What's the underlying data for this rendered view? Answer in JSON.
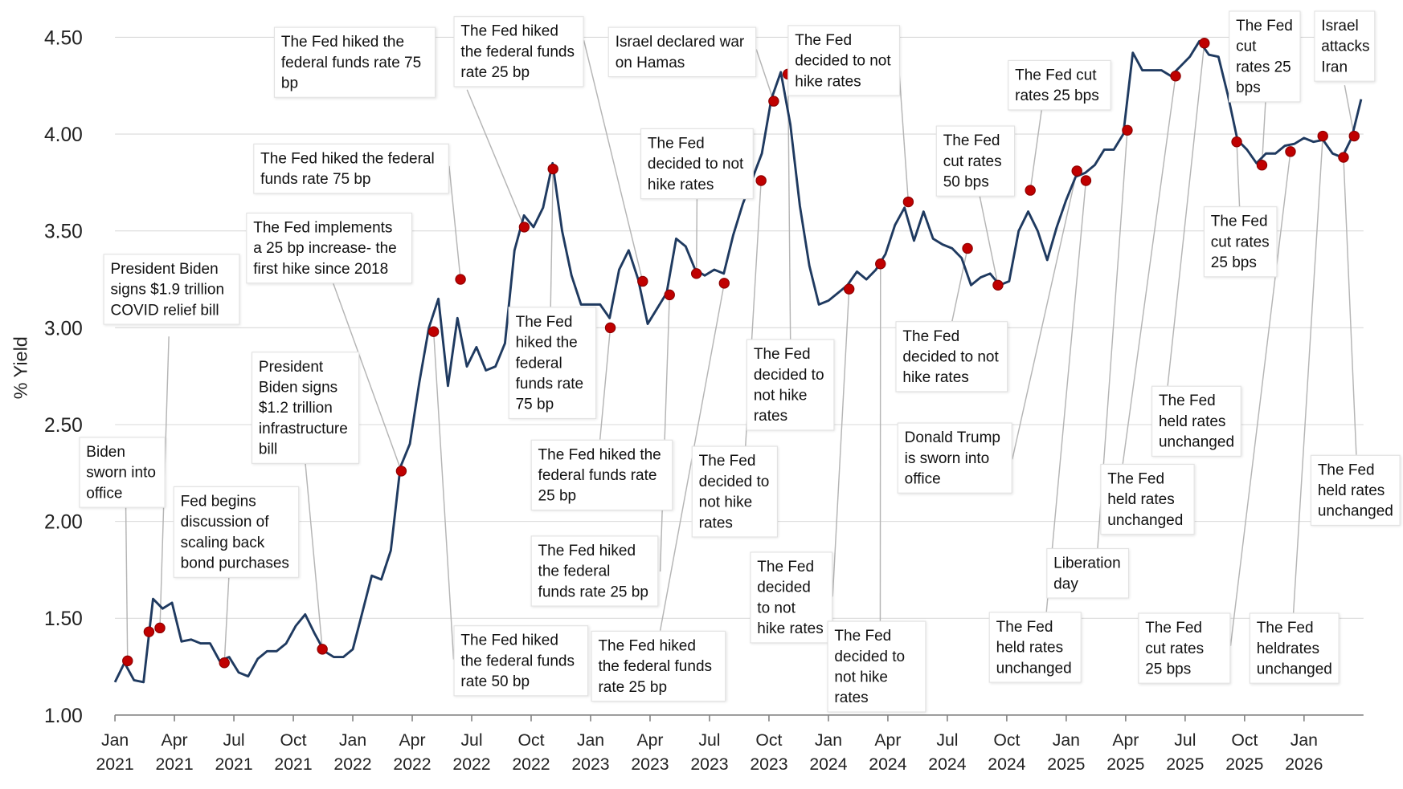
{
  "chart_data": {
    "type": "line",
    "y_label": "% Yield",
    "color": "#1f3a60",
    "marker_color": "#c00000",
    "grid": true,
    "ylim": [
      1,
      4.6
    ],
    "yticks": [
      {
        "value": 1,
        "label": "1.00"
      },
      {
        "value": 1.5,
        "label": "1.50"
      },
      {
        "value": 2,
        "label": "2.00"
      },
      {
        "value": 2.5,
        "label": "2.50"
      },
      {
        "value": 3,
        "label": "3.00"
      },
      {
        "value": 3.5,
        "label": "3.50"
      },
      {
        "value": 4,
        "label": "4.00"
      },
      {
        "value": 4.5,
        "label": "4.50"
      }
    ],
    "xlim": [
      2021,
      2026.25
    ],
    "xticks": [
      {
        "value": 2021,
        "label": "Jan 2021"
      },
      {
        "value": 2021.25,
        "label": "Apr 2021"
      },
      {
        "value": 2021.5,
        "label": "Jul 2021"
      },
      {
        "value": 2021.75,
        "label": "Oct 2021"
      },
      {
        "value": 2022,
        "label": "Jan 2022"
      },
      {
        "value": 2022.25,
        "label": "Apr 2022"
      },
      {
        "value": 2022.5,
        "label": "Jul 2022"
      },
      {
        "value": 2022.75,
        "label": "Oct 2022"
      },
      {
        "value": 2023,
        "label": "Jan 2023"
      },
      {
        "value": 2023.25,
        "label": "Apr 2023"
      },
      {
        "value": 2023.5,
        "label": "Jul 2023"
      },
      {
        "value": 2023.75,
        "label": "Oct 2023"
      },
      {
        "value": 2024,
        "label": "Jan 2024"
      },
      {
        "value": 2024.25,
        "label": "Apr 2024"
      },
      {
        "value": 2024.5,
        "label": "Jul 2024"
      },
      {
        "value": 2024.75,
        "label": "Oct 2024"
      },
      {
        "value": 2025,
        "label": "Jan 2025"
      },
      {
        "value": 2025.25,
        "label": "Apr 2025"
      },
      {
        "value": 2025.5,
        "label": "Jul 2025"
      },
      {
        "value": 2025.75,
        "label": "Oct 2025"
      },
      {
        "value": 2026,
        "label": "Jan 2026"
      }
    ],
    "x": [
      2021.0,
      2021.04,
      2021.08,
      2021.12,
      2021.16,
      2021.2,
      2021.24,
      2021.28,
      2021.32,
      2021.36,
      2021.4,
      2021.44,
      2021.48,
      2021.52,
      2021.56,
      2021.6,
      2021.64,
      2021.68,
      2021.72,
      2021.76,
      2021.8,
      2021.84,
      2021.88,
      2021.92,
      2021.96,
      2022.0,
      2022.04,
      2022.08,
      2022.12,
      2022.16,
      2022.2,
      2022.24,
      2022.28,
      2022.32,
      2022.36,
      2022.4,
      2022.44,
      2022.48,
      2022.52,
      2022.56,
      2022.6,
      2022.64,
      2022.68,
      2022.72,
      2022.76,
      2022.8,
      2022.84,
      2022.88,
      2022.92,
      2022.96,
      2023.0,
      2023.04,
      2023.08,
      2023.12,
      2023.16,
      2023.2,
      2023.24,
      2023.28,
      2023.32,
      2023.36,
      2023.4,
      2023.44,
      2023.48,
      2023.52,
      2023.56,
      2023.6,
      2023.64,
      2023.68,
      2023.72,
      2023.76,
      2023.8,
      2023.84,
      2023.88,
      2023.92,
      2023.96,
      2024.0,
      2024.04,
      2024.08,
      2024.12,
      2024.16,
      2024.2,
      2024.24,
      2024.28,
      2024.32,
      2024.36,
      2024.4,
      2024.44,
      2024.48,
      2024.52,
      2024.56,
      2024.6,
      2024.64,
      2024.68,
      2024.72,
      2024.76,
      2024.8,
      2024.84,
      2024.88,
      2024.92,
      2024.96,
      2025.0,
      2025.04,
      2025.08,
      2025.12,
      2025.16,
      2025.2,
      2025.24,
      2025.28,
      2025.32,
      2025.36,
      2025.4,
      2025.44,
      2025.48,
      2025.52,
      2025.56,
      2025.6,
      2025.64,
      2025.68,
      2025.72,
      2025.76,
      2025.8,
      2025.84,
      2025.88,
      2025.92,
      2025.96,
      2026.0,
      2026.04,
      2026.08,
      2026.12,
      2026.16,
      2026.2,
      2026.24
    ],
    "values": [
      1.17,
      1.27,
      1.18,
      1.17,
      1.6,
      1.55,
      1.58,
      1.38,
      1.39,
      1.37,
      1.37,
      1.28,
      1.3,
      1.22,
      1.2,
      1.29,
      1.33,
      1.33,
      1.37,
      1.46,
      1.52,
      1.42,
      1.33,
      1.3,
      1.3,
      1.34,
      1.53,
      1.72,
      1.7,
      1.85,
      2.28,
      2.4,
      2.72,
      3.0,
      3.15,
      2.7,
      3.05,
      2.8,
      2.9,
      2.78,
      2.8,
      2.92,
      3.4,
      3.58,
      3.52,
      3.62,
      3.85,
      3.5,
      3.27,
      3.12,
      3.12,
      3.12,
      3.05,
      3.3,
      3.4,
      3.25,
      3.02,
      3.1,
      3.18,
      3.46,
      3.42,
      3.3,
      3.27,
      3.3,
      3.28,
      3.48,
      3.64,
      3.77,
      3.9,
      4.18,
      4.32,
      4.05,
      3.63,
      3.32,
      3.12,
      3.14,
      3.18,
      3.22,
      3.29,
      3.25,
      3.3,
      3.38,
      3.53,
      3.62,
      3.45,
      3.6,
      3.46,
      3.43,
      3.41,
      3.36,
      3.22,
      3.26,
      3.28,
      3.22,
      3.24,
      3.5,
      3.6,
      3.5,
      3.35,
      3.52,
      3.66,
      3.78,
      3.8,
      3.84,
      3.92,
      3.92,
      4.0,
      4.42,
      4.33,
      4.33,
      4.33,
      4.3,
      4.35,
      4.4,
      4.48,
      4.41,
      4.4,
      4.2,
      3.97,
      3.92,
      3.85,
      3.9,
      3.9,
      3.94,
      3.95,
      3.98,
      3.96,
      3.97,
      3.9,
      3.88,
      3.98,
      4.18
    ],
    "events": [
      {
        "x": 2021.053,
        "y": 1.28,
        "text": "Biden sworn into office"
      },
      {
        "x": 2021.143,
        "y": 1.43
      },
      {
        "x": 2021.189,
        "y": 1.45,
        "text": "President Biden signs $1.9 trillion COVID relief bill"
      },
      {
        "x": 2021.46,
        "y": 1.27,
        "text": "Fed begins discussion of scaling back bond purchases"
      },
      {
        "x": 2021.872,
        "y": 1.34,
        "text": "President Biden signs $1.2 trillion infrastructure bill"
      },
      {
        "x": 2022.204,
        "y": 2.26,
        "text": "The Fed implements a 25 bp increase- the first hike since 2018"
      },
      {
        "x": 2022.34,
        "y": 2.98,
        "text": "The Fed hiked the federal funds rate 50 bp"
      },
      {
        "x": 2022.453,
        "y": 3.25,
        "text": "The Fed hiked the federal funds rate 75 bp"
      },
      {
        "x": 2022.721,
        "y": 3.52,
        "text": "The Fed hiked the federal funds rate 75 bp"
      },
      {
        "x": 2022.842,
        "y": 3.82,
        "text": "The Fed hiked the federal funds rate 75 bp"
      },
      {
        "x": 2023.083,
        "y": 3.0,
        "text": "The Fed hiked the federal funds rate 25 bp"
      },
      {
        "x": 2023.219,
        "y": 3.24,
        "text": "The Fed hiked the federal funds rate 25 bp"
      },
      {
        "x": 2023.332,
        "y": 3.17,
        "text": "The Fed hiked the federal funds rate 25 bp"
      },
      {
        "x": 2023.445,
        "y": 3.28,
        "text": "The Fed decided to not hike rates"
      },
      {
        "x": 2023.562,
        "y": 3.23,
        "text": "The Fed hiked the federal funds rate 25 bp"
      },
      {
        "x": 2023.717,
        "y": 3.76,
        "text": "The Fed decided to not hike rates"
      },
      {
        "x": 2023.77,
        "y": 4.17,
        "text": "Israel declared war on Hamas"
      },
      {
        "x": 2023.83,
        "y": 4.31,
        "text": "The Fed decided to not hike rates"
      },
      {
        "x": 2024.087,
        "y": 3.2,
        "text": "The Fed decided to not hike rates"
      },
      {
        "x": 2024.219,
        "y": 3.33,
        "text": "The Fed decided to not hike rates"
      },
      {
        "x": 2024.336,
        "y": 3.65,
        "text": "The Fed decided to not hike rates"
      },
      {
        "x": 2024.585,
        "y": 3.41,
        "text": "The Fed decided to not hike rates"
      },
      {
        "x": 2024.713,
        "y": 3.22,
        "text": "The Fed cut rates 50 bps"
      },
      {
        "x": 2024.849,
        "y": 3.71,
        "text": "The Fed cut rates 25 bps"
      },
      {
        "x": 2025.045,
        "y": 3.81,
        "text": "Donald Trump is sworn into office"
      },
      {
        "x": 2025.083,
        "y": 3.76,
        "text": "The Fed held rates unchanged"
      },
      {
        "x": 2025.257,
        "y": 4.02,
        "text": "Liberation day"
      },
      {
        "x": 2025.46,
        "y": 4.3,
        "text": "The Fed held rates unchanged"
      },
      {
        "x": 2025.581,
        "y": 4.47,
        "text": "The Fed held rates unchanged"
      },
      {
        "x": 2025.717,
        "y": 3.96,
        "text": "The Fed cut rates 25 bps"
      },
      {
        "x": 2025.823,
        "y": 3.84,
        "text": "The Fed cut rates 25 bps"
      },
      {
        "x": 2025.943,
        "y": 3.91,
        "text": "The Fed cut rates 25 bps"
      },
      {
        "x": 2026.079,
        "y": 3.99,
        "text": "The Fed heldrates unchanged"
      },
      {
        "x": 2026.166,
        "y": 3.88,
        "text": "The Fed held rates unchanged"
      },
      {
        "x": 2026.211,
        "y": 3.99,
        "text": "Israel attacks Iran"
      }
    ]
  }
}
